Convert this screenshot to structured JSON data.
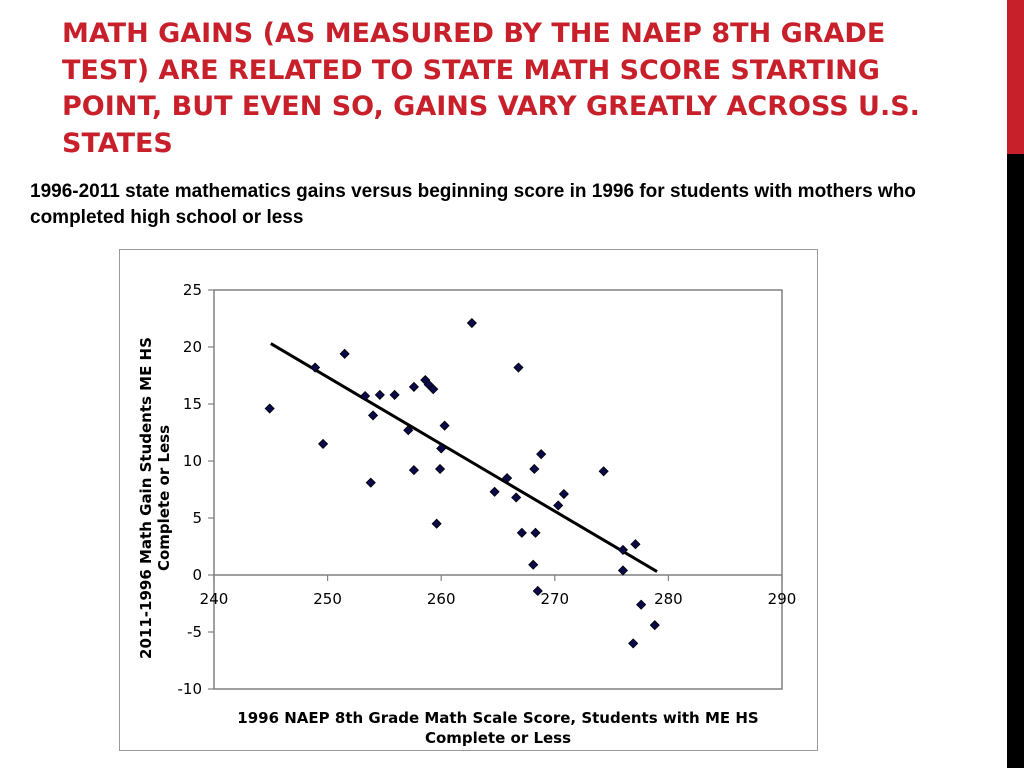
{
  "slide": {
    "title": "MATH GAINS (AS MEASURED BY THE NAEP 8TH GRADE TEST) ARE RELATED TO STATE MATH SCORE STARTING POINT, BUT EVEN SO, GAINS VARY GREATLY ACROSS U.S. STATES",
    "subtitle": "1996-2011 state mathematics gains versus beginning score in 1996 for students with mothers who completed high school or less"
  },
  "colors": {
    "title": "#c8202b",
    "accent_red": "#c8202b",
    "accent_black": "#000000",
    "marker": "#0a0a4a",
    "trendline": "#000000"
  },
  "chart_data": {
    "type": "scatter",
    "title": "",
    "xlabel": "1996 NAEP 8th Grade Math Scale Score, Students with ME HS Complete or Less",
    "ylabel": "2011-1996 Math Gain Students ME HS Complete or Less",
    "xlim": [
      240,
      290
    ],
    "ylim": [
      -10,
      25
    ],
    "x_ticks": [
      240,
      250,
      260,
      270,
      280,
      290
    ],
    "y_ticks": [
      25,
      20,
      15,
      10,
      5,
      0,
      -5,
      -10
    ],
    "grid": false,
    "marker": "diamond",
    "points": [
      {
        "x": 244.9,
        "y": 14.6
      },
      {
        "x": 248.9,
        "y": 18.2
      },
      {
        "x": 249.6,
        "y": 11.5
      },
      {
        "x": 251.5,
        "y": 19.4
      },
      {
        "x": 253.3,
        "y": 15.7
      },
      {
        "x": 253.8,
        "y": 8.1
      },
      {
        "x": 254.0,
        "y": 14.0
      },
      {
        "x": 254.6,
        "y": 15.8
      },
      {
        "x": 255.9,
        "y": 15.8
      },
      {
        "x": 257.1,
        "y": 12.7
      },
      {
        "x": 257.6,
        "y": 9.2
      },
      {
        "x": 257.6,
        "y": 16.5
      },
      {
        "x": 258.6,
        "y": 17.1
      },
      {
        "x": 258.9,
        "y": 16.7
      },
      {
        "x": 259.3,
        "y": 16.3
      },
      {
        "x": 259.6,
        "y": 4.5
      },
      {
        "x": 259.9,
        "y": 9.3
      },
      {
        "x": 260.0,
        "y": 11.1
      },
      {
        "x": 260.3,
        "y": 13.1
      },
      {
        "x": 262.7,
        "y": 22.1
      },
      {
        "x": 264.7,
        "y": 7.3
      },
      {
        "x": 265.8,
        "y": 8.5
      },
      {
        "x": 266.6,
        "y": 6.8
      },
      {
        "x": 266.8,
        "y": 18.2
      },
      {
        "x": 267.1,
        "y": 3.7
      },
      {
        "x": 268.1,
        "y": 0.9
      },
      {
        "x": 268.2,
        "y": 9.3
      },
      {
        "x": 268.3,
        "y": 3.7
      },
      {
        "x": 268.5,
        "y": -1.4
      },
      {
        "x": 268.8,
        "y": 10.6
      },
      {
        "x": 270.3,
        "y": 6.1
      },
      {
        "x": 270.8,
        "y": 7.1
      },
      {
        "x": 274.3,
        "y": 9.1
      },
      {
        "x": 276.0,
        "y": 2.2
      },
      {
        "x": 276.0,
        "y": 0.4
      },
      {
        "x": 276.9,
        "y": -6.0
      },
      {
        "x": 277.1,
        "y": 2.7
      },
      {
        "x": 277.6,
        "y": -2.6
      },
      {
        "x": 278.8,
        "y": -4.4
      }
    ],
    "trendline": {
      "x": [
        245,
        279
      ],
      "y": [
        20.3,
        0.3
      ]
    }
  }
}
